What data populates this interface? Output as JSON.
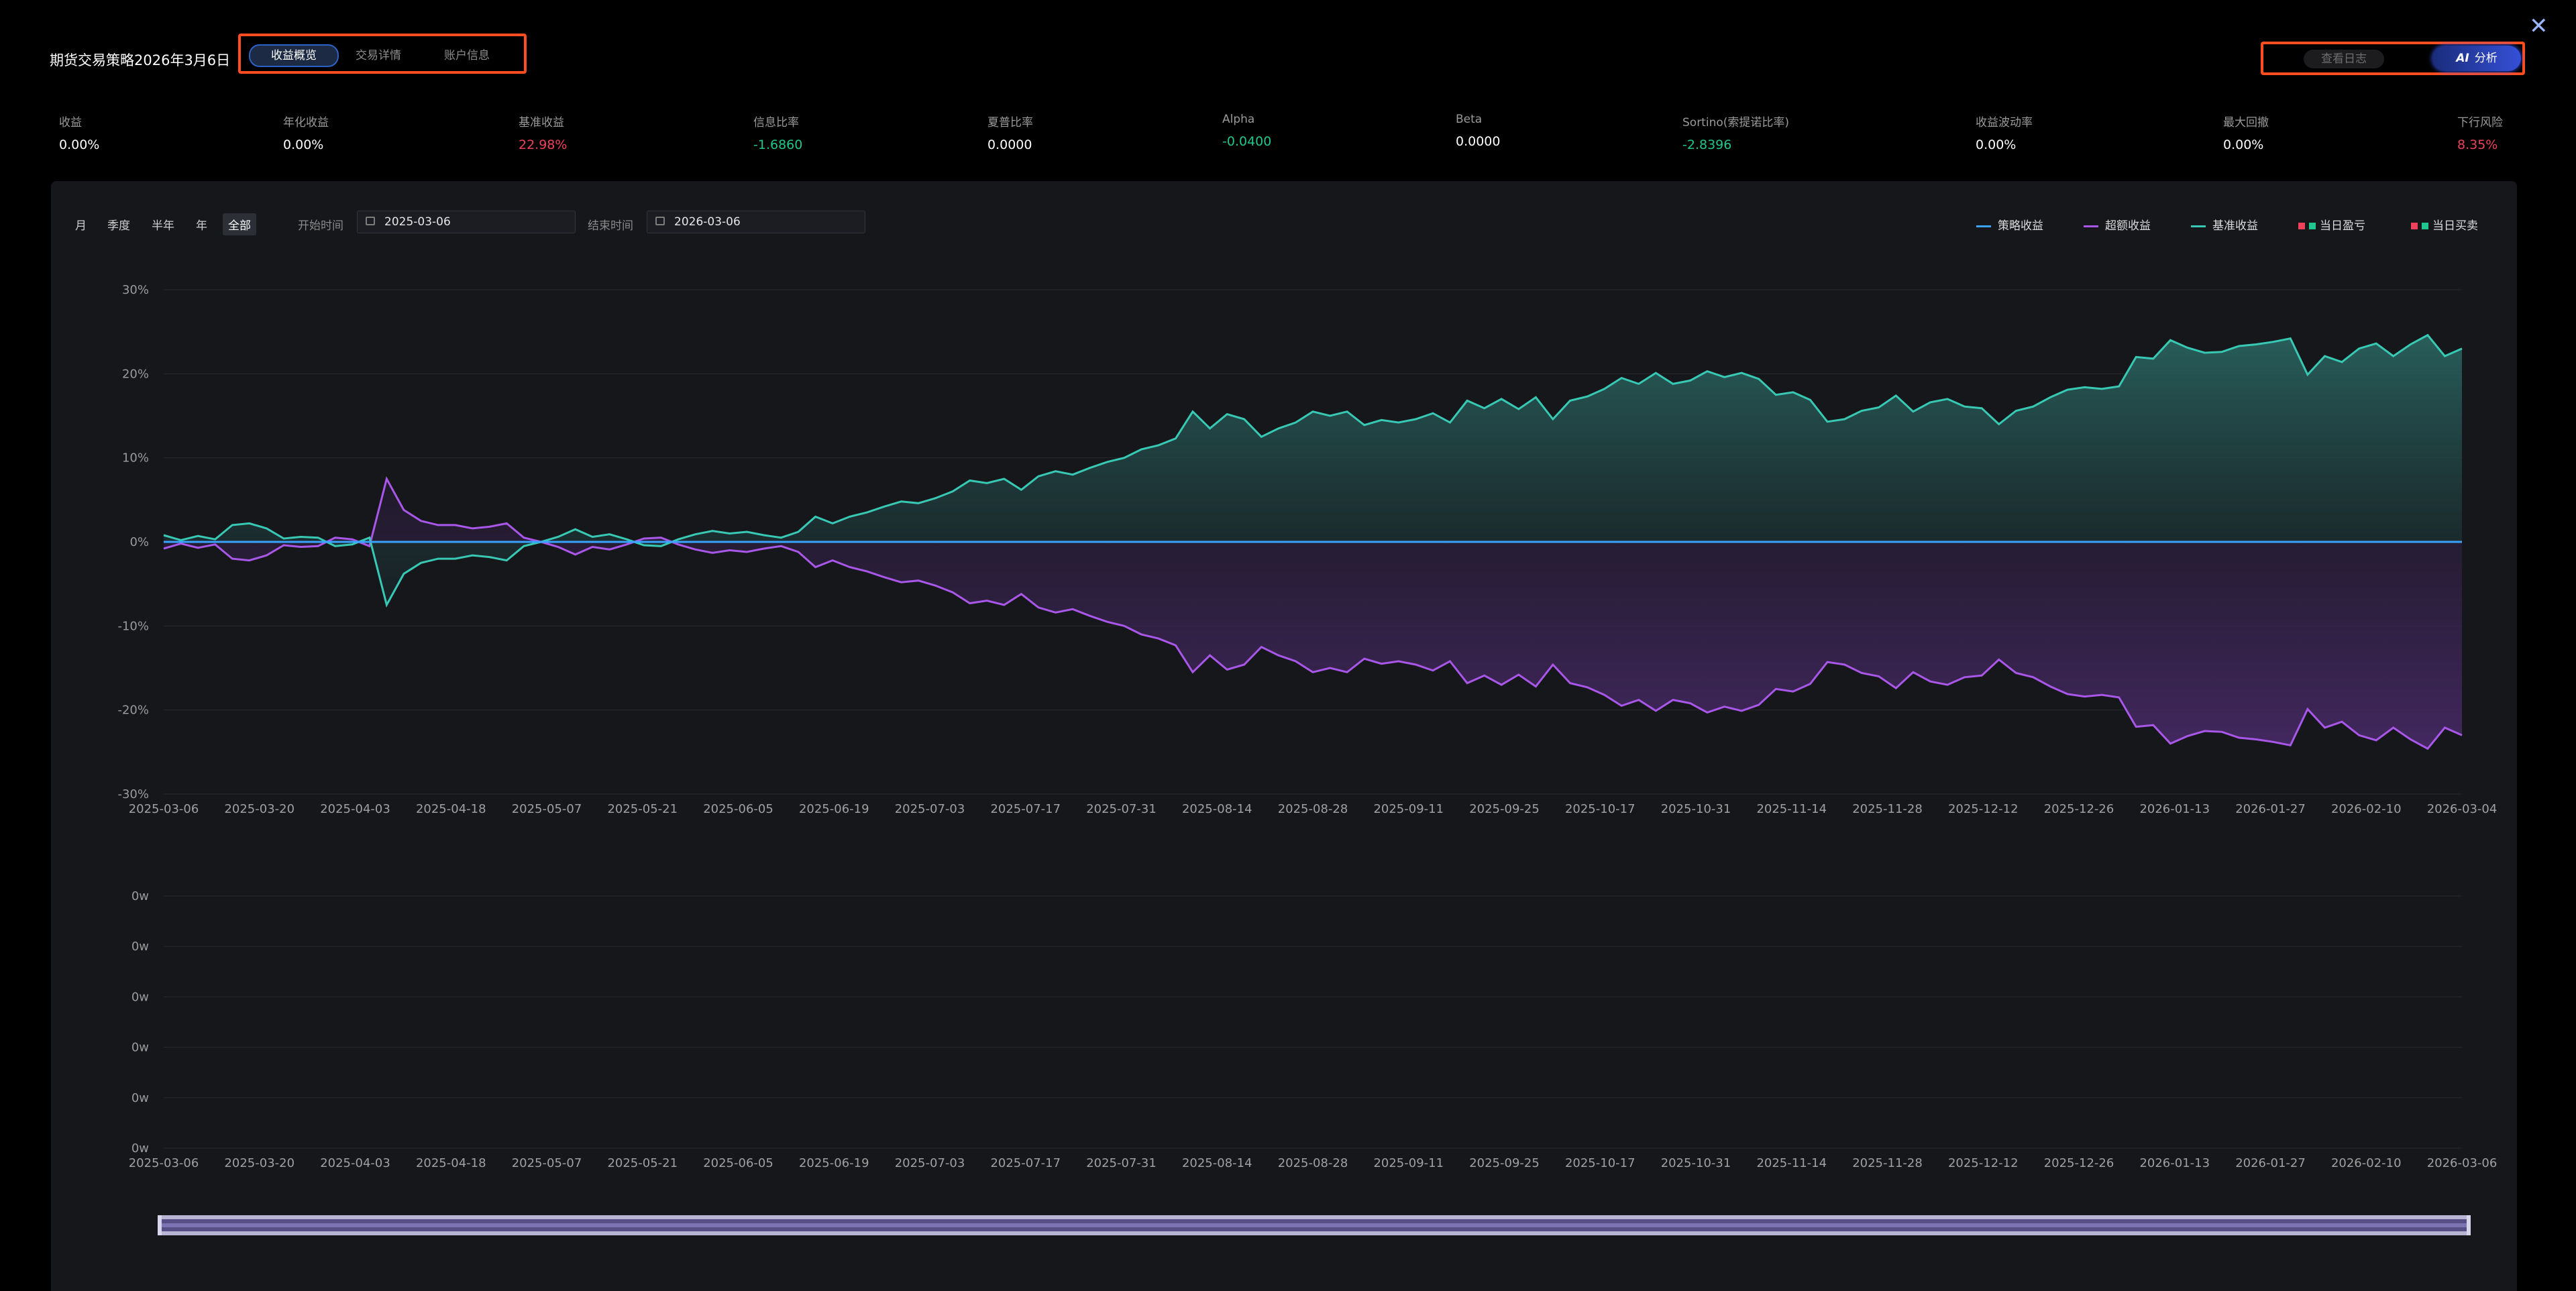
{
  "header": {
    "title": "期货交易策略2026年3月6日",
    "tabs": [
      {
        "label": "收益概览",
        "active": true
      },
      {
        "label": "交易详情",
        "active": false
      },
      {
        "label": "账户信息",
        "active": false
      }
    ],
    "log_button": "查看日志",
    "ai_icon_text": "AI",
    "ai_button": "分析",
    "close_icon": "close-icon"
  },
  "metrics": [
    {
      "label": "收益",
      "value": "0.00%",
      "color": "#ffffff"
    },
    {
      "label": "年化收益",
      "value": "0.00%",
      "color": "#ffffff"
    },
    {
      "label": "基准收益",
      "value": "22.98%",
      "color": "#f0415b"
    },
    {
      "label": "信息比率",
      "value": "-1.6860",
      "color": "#1fc78f"
    },
    {
      "label": "夏普比率",
      "value": "0.0000",
      "color": "#ffffff"
    },
    {
      "label": "Alpha",
      "value": "-0.0400",
      "color": "#1fc78f"
    },
    {
      "label": "Beta",
      "value": "0.0000",
      "color": "#ffffff"
    },
    {
      "label": "Sortino(索提诺比率)",
      "value": "-2.8396",
      "color": "#1fc78f"
    },
    {
      "label": "收益波动率",
      "value": "0.00%",
      "color": "#ffffff"
    },
    {
      "label": "最大回撤",
      "value": "0.00%",
      "color": "#ffffff"
    },
    {
      "label": "下行风险",
      "value": "8.35%",
      "color": "#f0415b"
    }
  ],
  "toolbar": {
    "periods": [
      "月",
      "季度",
      "半年",
      "年",
      "全部"
    ],
    "active_period": "全部",
    "start_label": "开始时间",
    "start_value": "2025-03-06",
    "end_label": "结束时间",
    "end_value": "2026-03-06"
  },
  "legend": [
    {
      "label": "策略收益",
      "kind": "line",
      "color": "#3aa3ff"
    },
    {
      "label": "超额收益",
      "kind": "line",
      "color": "#a857e8"
    },
    {
      "label": "基准收益",
      "kind": "line",
      "color": "#38c9b4"
    },
    {
      "label": "当日盈亏",
      "kind": "squares",
      "colors": [
        "#f0415b",
        "#1fc78f"
      ]
    },
    {
      "label": "当日买卖",
      "kind": "squares",
      "colors": [
        "#f0415b",
        "#1fc78f"
      ]
    }
  ],
  "chart_data": [
    {
      "type": "area",
      "y_ticks": [
        "30%",
        "20%",
        "10%",
        "0%",
        "-10%",
        "-20%",
        "-30%"
      ],
      "ylim": [
        -30,
        30
      ],
      "grid": true,
      "x_tick_labels": [
        "2025-03-06",
        "2025-03-20",
        "2025-04-03",
        "2025-04-18",
        "2025-05-07",
        "2025-05-21",
        "2025-06-05",
        "2025-06-19",
        "2025-07-03",
        "2025-07-17",
        "2025-07-31",
        "2025-08-14",
        "2025-08-28",
        "2025-09-11",
        "2025-09-25",
        "2025-10-17",
        "2025-10-31",
        "2025-11-14",
        "2025-11-28",
        "2025-12-12",
        "2025-12-26",
        "2026-01-13",
        "2026-01-27",
        "2026-02-10",
        "2026-03-04"
      ],
      "series": [
        {
          "name": "策略收益",
          "color": "#3aa3ff",
          "constant": 0
        },
        {
          "name": "基准收益",
          "color": "#38c9b4",
          "values": [
            0.8,
            0.2,
            0.7,
            0.3,
            2.0,
            2.2,
            1.6,
            0.4,
            0.6,
            0.5,
            -0.5,
            -0.3,
            0.5,
            -7.5,
            -3.8,
            -2.5,
            -2.0,
            -2.0,
            -1.6,
            -1.8,
            -2.2,
            -0.5,
            0.0,
            0.6,
            1.5,
            0.6,
            0.9,
            0.3,
            -0.4,
            -0.5,
            0.3,
            0.9,
            1.3,
            1.0,
            1.2,
            0.8,
            0.5,
            1.2,
            3.0,
            2.2,
            3.0,
            3.5,
            4.2,
            4.8,
            4.6,
            5.2,
            6.0,
            7.3,
            7.0,
            7.5,
            6.2,
            7.8,
            8.4,
            8.0,
            8.8,
            9.5,
            10.0,
            11.0,
            11.5,
            12.3,
            15.5,
            13.5,
            15.2,
            14.6,
            12.5,
            13.5,
            14.2,
            15.5,
            15.0,
            15.5,
            13.9,
            14.5,
            14.2,
            14.6,
            15.3,
            14.2,
            16.8,
            15.9,
            17.0,
            15.8,
            17.2,
            14.6,
            16.8,
            17.3,
            18.2,
            19.5,
            18.8,
            20.1,
            18.8,
            19.2,
            20.3,
            19.6,
            20.1,
            19.4,
            17.5,
            17.8,
            16.9,
            14.3,
            14.6,
            15.6,
            16.0,
            17.4,
            15.5,
            16.6,
            17.0,
            16.1,
            15.9,
            14.0,
            15.6,
            16.1,
            17.2,
            18.1,
            18.4,
            18.2,
            18.5,
            22.0,
            21.8,
            24.0,
            23.1,
            22.5,
            22.6,
            23.3,
            23.5,
            23.8,
            24.2,
            19.9,
            22.1,
            21.4,
            23.0,
            23.6,
            22.1,
            23.5,
            24.6,
            22.1,
            23.0
          ]
        },
        {
          "name": "超额收益",
          "color": "#a857e8"
        }
      ]
    },
    {
      "type": "bar",
      "y_ticks": [
        "0w",
        "0w",
        "0w",
        "0w",
        "0w",
        "0w"
      ],
      "x_tick_labels": [
        "2025-03-06",
        "2025-03-20",
        "2025-04-03",
        "2025-04-18",
        "2025-05-07",
        "2025-05-21",
        "2025-06-05",
        "2025-06-19",
        "2025-07-03",
        "2025-07-17",
        "2025-07-31",
        "2025-08-14",
        "2025-08-28",
        "2025-09-11",
        "2025-09-25",
        "2025-10-17",
        "2025-10-31",
        "2025-11-14",
        "2025-11-28",
        "2025-12-12",
        "2025-12-26",
        "2026-01-13",
        "2026-01-27",
        "2026-02-10",
        "2026-03-06"
      ],
      "series": []
    }
  ],
  "zoom": {
    "start": 0,
    "end": 100
  }
}
